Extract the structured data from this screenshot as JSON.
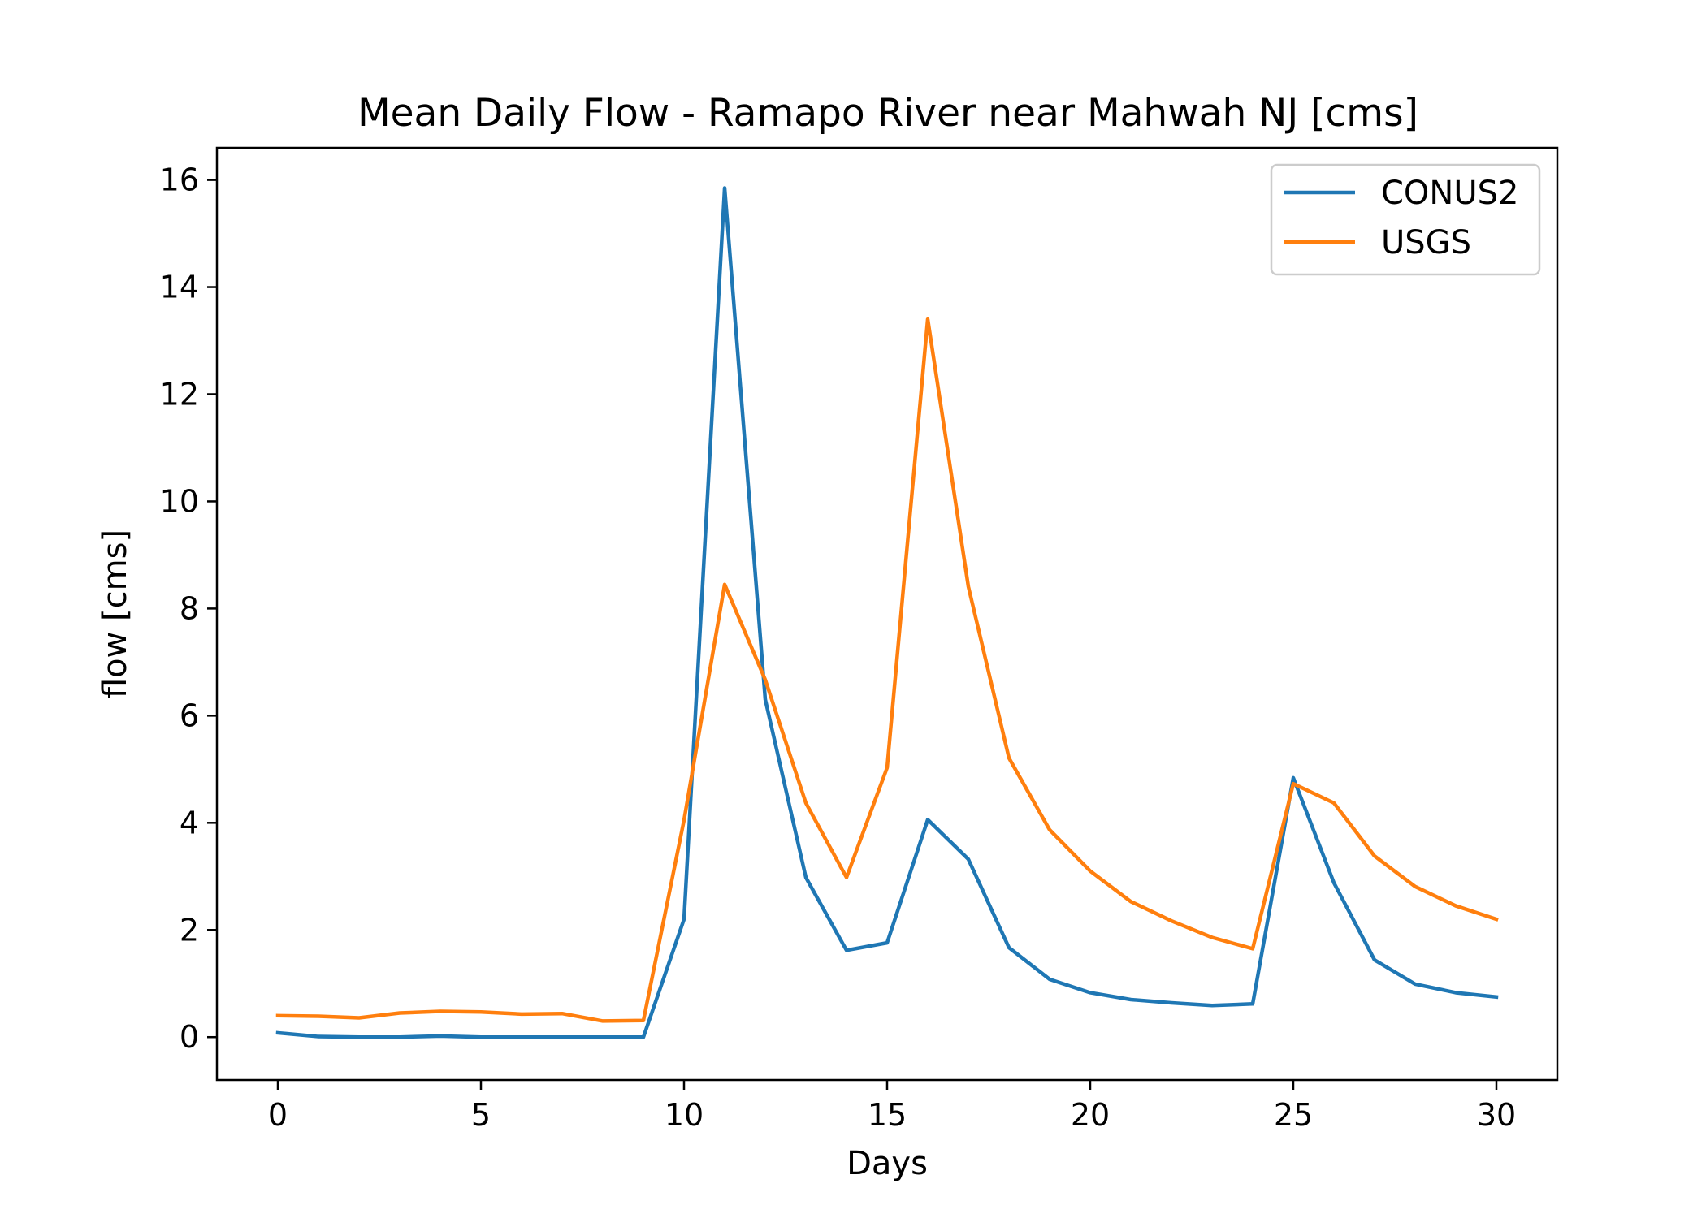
{
  "chart_data": {
    "type": "line",
    "title": "Mean Daily Flow - Ramapo River near Mahwah NJ [cms]",
    "xlabel": "Days",
    "ylabel": "flow [cms]",
    "xlim": [
      -1.5,
      31.5
    ],
    "ylim": [
      -0.8,
      16.6
    ],
    "xticks": [
      0,
      5,
      10,
      15,
      20,
      25,
      30
    ],
    "yticks": [
      0,
      2,
      4,
      6,
      8,
      10,
      12,
      14,
      16
    ],
    "grid": false,
    "legend": {
      "position": "top-right"
    },
    "x": [
      0,
      1,
      2,
      3,
      4,
      5,
      6,
      7,
      8,
      9,
      10,
      11,
      12,
      13,
      14,
      15,
      16,
      17,
      18,
      19,
      20,
      21,
      22,
      23,
      24,
      25,
      26,
      27,
      28,
      29,
      30
    ],
    "series": [
      {
        "name": "CONUS2",
        "color": "#1f77b4",
        "values": [
          0.08,
          0.01,
          0.0,
          0.0,
          0.02,
          0.0,
          0.0,
          0.0,
          0.0,
          0.0,
          2.2,
          15.85,
          6.3,
          2.98,
          1.62,
          1.76,
          4.06,
          3.32,
          1.67,
          1.08,
          0.83,
          0.7,
          0.64,
          0.59,
          0.62,
          4.84,
          2.88,
          1.44,
          0.99,
          0.83,
          0.75
        ]
      },
      {
        "name": "USGS",
        "color": "#ff7f0e",
        "values": [
          0.4,
          0.39,
          0.36,
          0.45,
          0.48,
          0.47,
          0.43,
          0.44,
          0.3,
          0.31,
          4.05,
          8.45,
          6.67,
          4.37,
          2.98,
          5.03,
          13.4,
          8.41,
          5.21,
          3.87,
          3.1,
          2.53,
          2.17,
          1.86,
          1.65,
          4.73,
          4.37,
          3.38,
          2.81,
          2.45,
          2.2
        ]
      }
    ]
  }
}
